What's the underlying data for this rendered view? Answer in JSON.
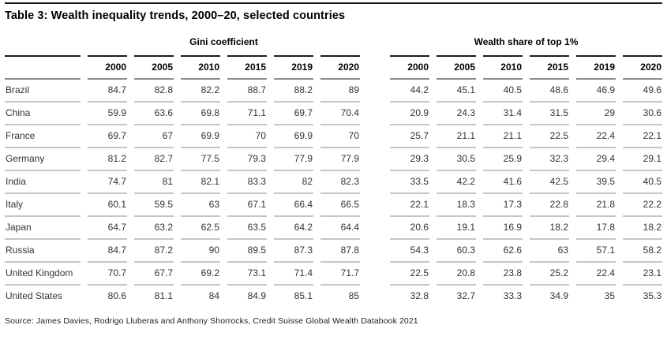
{
  "page": {
    "title": "Table 3: Wealth inequality trends, 2000–20, selected countries",
    "source": "Source: James Davies, Rodrigo Lluberas and Anthony Shorrocks, Credit Suisse Global Wealth Databook 2021"
  },
  "colors": {
    "top_rule": "#1a1a1a",
    "header_line_top": "#1c1c1c",
    "header_line_bottom": "#8e8e8e",
    "row_separator": "#c6c6c6",
    "title_text": "#000000",
    "body_text": "#333333",
    "background": "#ffffff"
  },
  "table": {
    "groups": [
      {
        "label": "Gini coefficient",
        "years": [
          "2000",
          "2005",
          "2010",
          "2015",
          "2019",
          "2020"
        ]
      },
      {
        "label": "Wealth share of top 1%",
        "years": [
          "2000",
          "2005",
          "2010",
          "2015",
          "2019",
          "2020"
        ]
      }
    ],
    "rows": [
      {
        "country": "Brazil",
        "gini": [
          "84.7",
          "82.8",
          "82.2",
          "88.7",
          "88.2",
          "89"
        ],
        "wealth_share": [
          "44.2",
          "45.1",
          "40.5",
          "48.6",
          "46.9",
          "49.6"
        ]
      },
      {
        "country": "China",
        "gini": [
          "59.9",
          "63.6",
          "69.8",
          "71.1",
          "69.7",
          "70.4"
        ],
        "wealth_share": [
          "20.9",
          "24.3",
          "31.4",
          "31.5",
          "29",
          "30.6"
        ]
      },
      {
        "country": "France",
        "gini": [
          "69.7",
          "67",
          "69.9",
          "70",
          "69.9",
          "70"
        ],
        "wealth_share": [
          "25.7",
          "21.1",
          "21.1",
          "22.5",
          "22.4",
          "22.1"
        ]
      },
      {
        "country": "Germany",
        "gini": [
          "81.2",
          "82.7",
          "77.5",
          "79.3",
          "77.9",
          "77.9"
        ],
        "wealth_share": [
          "29.3",
          "30.5",
          "25.9",
          "32.3",
          "29.4",
          "29.1"
        ]
      },
      {
        "country": "India",
        "gini": [
          "74.7",
          "81",
          "82.1",
          "83.3",
          "82",
          "82.3"
        ],
        "wealth_share": [
          "33.5",
          "42.2",
          "41.6",
          "42.5",
          "39.5",
          "40.5"
        ]
      },
      {
        "country": "Italy",
        "gini": [
          "60.1",
          "59.5",
          "63",
          "67.1",
          "66.4",
          "66.5"
        ],
        "wealth_share": [
          "22.1",
          "18.3",
          "17.3",
          "22.8",
          "21.8",
          "22.2"
        ]
      },
      {
        "country": "Japan",
        "gini": [
          "64.7",
          "63.2",
          "62.5",
          "63.5",
          "64.2",
          "64.4"
        ],
        "wealth_share": [
          "20.6",
          "19.1",
          "16.9",
          "18.2",
          "17.8",
          "18.2"
        ]
      },
      {
        "country": "Russia",
        "gini": [
          "84.7",
          "87.2",
          "90",
          "89.5",
          "87.3",
          "87.8"
        ],
        "wealth_share": [
          "54.3",
          "60.3",
          "62.6",
          "63",
          "57.1",
          "58.2"
        ]
      },
      {
        "country": "United Kingdom",
        "gini": [
          "70.7",
          "67.7",
          "69.2",
          "73.1",
          "71.4",
          "71.7"
        ],
        "wealth_share": [
          "22.5",
          "20.8",
          "23.8",
          "25.2",
          "22.4",
          "23.1"
        ]
      },
      {
        "country": "United States",
        "gini": [
          "80.6",
          "81.1",
          "84",
          "84.9",
          "85.1",
          "85"
        ],
        "wealth_share": [
          "32.8",
          "32.7",
          "33.3",
          "34.9",
          "35",
          "35.3"
        ]
      }
    ]
  }
}
